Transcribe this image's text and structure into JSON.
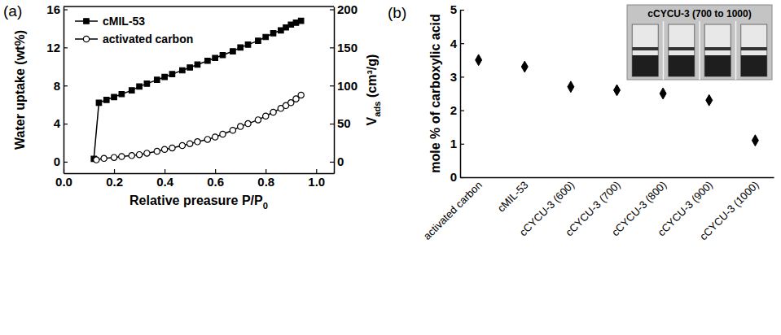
{
  "chart_data": [
    {
      "type": "line",
      "panel": "(a)",
      "xlabel": {
        "text": "Relative preasure P/P",
        "sub": "0"
      },
      "ylabel": "Water uptake (wt%)",
      "y2label": {
        "text": "V",
        "sub": "ads",
        "after": " (cm³/g)"
      },
      "xlim": [
        0,
        1.07
      ],
      "xticks": [
        {
          "value": 0,
          "label": "0.0"
        },
        {
          "value": 0.2,
          "label": "0.2"
        },
        {
          "value": 0.4,
          "label": "0.4"
        },
        {
          "value": 0.6,
          "label": "0.6"
        },
        {
          "value": 0.8,
          "label": "0.8"
        },
        {
          "value": 1,
          "label": "1.0"
        }
      ],
      "ylim": [
        -1.2,
        16.3
      ],
      "yticks": [
        0,
        4,
        8,
        12,
        16
      ],
      "y2lim": [
        -15,
        203.75
      ],
      "y2ticks": [
        0,
        50,
        100,
        150,
        200
      ],
      "legend": "upper left",
      "series": [
        {
          "name": "cMIL-53",
          "color": "#000000",
          "marker": "square",
          "line_style": "solid",
          "x": [
            0.12,
            0.14,
            0.17,
            0.2,
            0.23,
            0.27,
            0.3,
            0.33,
            0.37,
            0.4,
            0.43,
            0.47,
            0.5,
            0.53,
            0.57,
            0.6,
            0.63,
            0.67,
            0.7,
            0.73,
            0.77,
            0.8,
            0.83,
            0.86,
            0.88,
            0.9,
            0.92,
            0.94
          ],
          "values": [
            0.3,
            6.2,
            6.5,
            6.8,
            7.1,
            7.5,
            7.9,
            8.2,
            8.6,
            8.9,
            9.2,
            9.6,
            9.9,
            10.2,
            10.6,
            10.9,
            11.2,
            11.6,
            12.0,
            12.3,
            12.7,
            13.1,
            13.5,
            13.8,
            14.1,
            14.4,
            14.6,
            14.8
          ]
        },
        {
          "name": "activated carbon",
          "color": "#000000",
          "marker": "open-circle",
          "line_style": "solid",
          "x": [
            0.13,
            0.16,
            0.2,
            0.23,
            0.27,
            0.3,
            0.33,
            0.37,
            0.4,
            0.43,
            0.47,
            0.5,
            0.53,
            0.57,
            0.6,
            0.63,
            0.67,
            0.7,
            0.73,
            0.77,
            0.8,
            0.83,
            0.86,
            0.88,
            0.9,
            0.92,
            0.94
          ],
          "values": [
            0.2,
            0.35,
            0.45,
            0.55,
            0.65,
            0.75,
            0.9,
            1.1,
            1.3,
            1.45,
            1.7,
            1.9,
            2.1,
            2.35,
            2.6,
            2.9,
            3.3,
            3.7,
            4.0,
            4.4,
            4.8,
            5.2,
            5.6,
            5.9,
            6.2,
            6.6,
            7.0
          ]
        }
      ]
    },
    {
      "type": "scatter",
      "panel": "(b)",
      "ylabel": "mole % of carboxylic acid",
      "inset_title": "cCYCU-3 (700 to 1000)",
      "categories": [
        "activated carbon",
        "cMIL-53",
        "cCYCU-3 (600)",
        "cCYCU-3 (700)",
        "cCYCU-3 (800)",
        "cCYCU-3 (900)",
        "cCYCU-3 (1000)"
      ],
      "values": [
        3.5,
        3.3,
        2.7,
        2.6,
        2.5,
        2.3,
        1.1
      ],
      "color": "#000000",
      "marker": "diamond",
      "ylim": [
        0,
        5
      ],
      "yticks": [
        0,
        1,
        2,
        3,
        4,
        5
      ]
    }
  ]
}
